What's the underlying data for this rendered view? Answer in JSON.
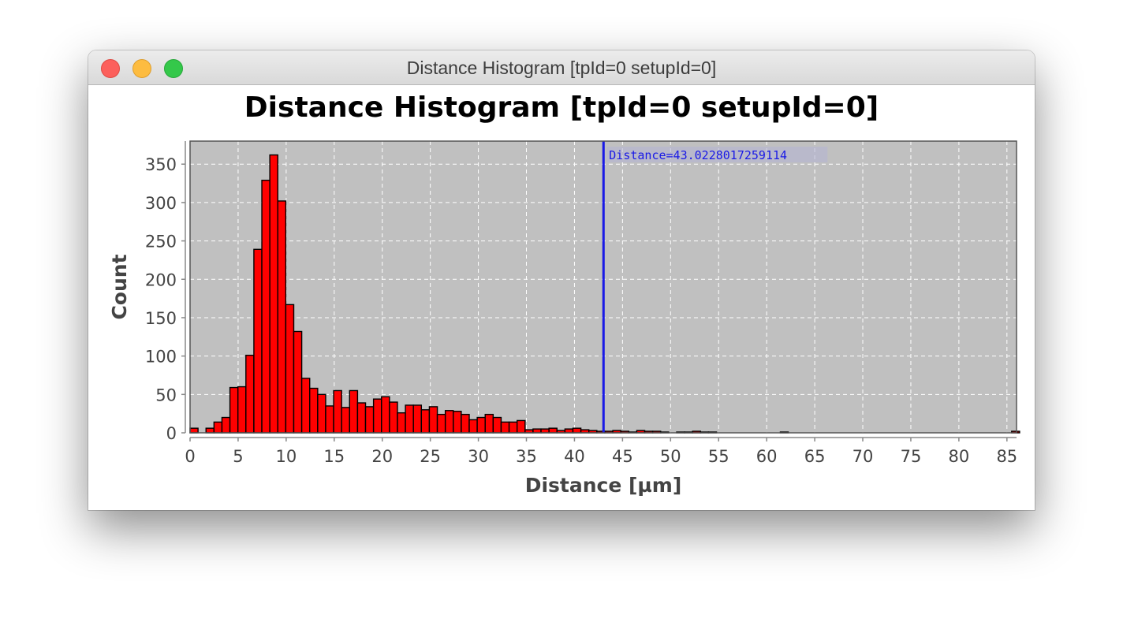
{
  "window": {
    "title": "Distance Histogram [tpId=0 setupId=0]"
  },
  "chart_data": {
    "type": "bar",
    "title": "Distance Histogram [tpId=0 setupId=0]",
    "xlabel": "Distance [µm]",
    "ylabel": "Count",
    "xlim": [
      0,
      86
    ],
    "ylim": [
      0,
      380
    ],
    "xticks": [
      0,
      5,
      10,
      15,
      20,
      25,
      30,
      35,
      40,
      45,
      50,
      55,
      60,
      65,
      70,
      75,
      80,
      85
    ],
    "yticks": [
      0,
      50,
      100,
      150,
      200,
      250,
      300,
      350
    ],
    "grid": true,
    "bin_width": 0.83,
    "bin_starts": [
      0,
      0.83,
      1.66,
      2.49,
      3.32,
      4.15,
      4.98,
      5.81,
      6.64,
      7.47,
      8.3,
      9.13,
      9.96,
      10.79,
      11.62,
      12.45,
      13.28,
      14.11,
      14.94,
      15.77,
      16.6,
      17.43,
      18.26,
      19.09,
      19.92,
      20.75,
      21.58,
      22.41,
      23.24,
      24.07,
      24.9,
      25.73,
      26.56,
      27.39,
      28.22,
      29.05,
      29.88,
      30.71,
      31.54,
      32.37,
      33.2,
      34.03,
      34.86,
      35.69,
      36.52,
      37.35,
      38.18,
      39.01,
      39.84,
      40.67,
      41.5,
      42.33,
      43.16,
      43.99,
      44.82,
      45.65,
      46.48,
      47.31,
      48.14,
      48.97,
      49.8,
      50.63,
      51.46,
      52.29,
      53.12,
      53.95,
      54.78,
      55.61,
      56.44,
      57.27,
      58.1,
      58.93,
      59.76,
      60.59,
      61.42,
      62.25,
      63.08,
      63.91,
      64.74,
      65.57,
      66.4,
      67.23,
      68.06,
      68.89,
      69.72,
      70.55,
      71.38,
      72.21,
      73.04,
      73.87,
      74.7,
      75.53,
      76.36,
      77.19,
      78.02,
      78.85,
      79.68,
      80.51,
      81.34,
      82.17,
      83.0,
      83.83,
      84.66,
      85.49
    ],
    "values": [
      6,
      0,
      6,
      14,
      20,
      59,
      60,
      101,
      239,
      329,
      362,
      302,
      167,
      132,
      71,
      58,
      50,
      35,
      55,
      33,
      55,
      39,
      34,
      44,
      47,
      40,
      26,
      36,
      36,
      30,
      34,
      24,
      29,
      28,
      24,
      17,
      20,
      24,
      20,
      14,
      14,
      16,
      4,
      5,
      5,
      6,
      3,
      5,
      6,
      4,
      3,
      2,
      2,
      3,
      2,
      1,
      3,
      2,
      2,
      1,
      0,
      1,
      1,
      2,
      1,
      1,
      0,
      0,
      0,
      0,
      0,
      0,
      0,
      0,
      1,
      0,
      0,
      0,
      0,
      0,
      0,
      0,
      0,
      0,
      0,
      0,
      0,
      0,
      0,
      0,
      0,
      0,
      0,
      0,
      0,
      0,
      0,
      0,
      0,
      0,
      0,
      0,
      0,
      2
    ],
    "marker": {
      "value": 43.0228017259114,
      "label": "Distance=43.0228017259114"
    },
    "colors": {
      "bar": "#ff0000",
      "bar_edge": "#000000",
      "plot_background": "#c0c0c0",
      "gridline": "#ffffff",
      "marker": "#1a1ae6"
    }
  }
}
